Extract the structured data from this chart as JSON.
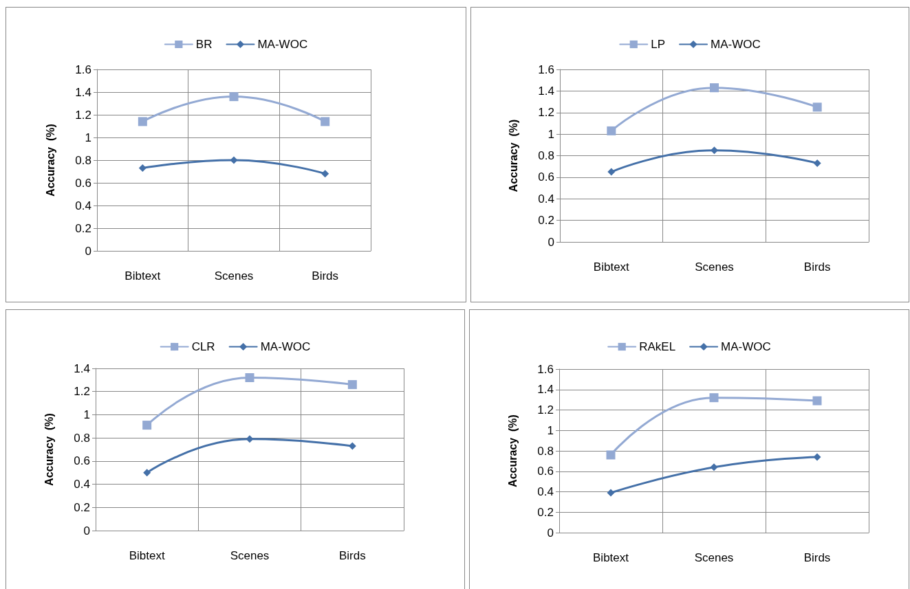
{
  "chart_data": [
    {
      "type": "line",
      "ylabel": "Accuracy  (%)",
      "categories": [
        "Bibtext",
        "Scenes",
        "Birds"
      ],
      "ylim": [
        0,
        1.6
      ],
      "yticks": [
        0,
        0.2,
        0.4,
        0.6,
        0.8,
        1,
        1.2,
        1.4,
        1.6
      ],
      "grid": true,
      "legend": "top",
      "series": [
        {
          "name": "BR",
          "color": "#93a9d3",
          "marker": "square",
          "values": [
            1.14,
            1.36,
            1.14
          ]
        },
        {
          "name": "MA-WOC",
          "color": "#4470a8",
          "marker": "diamond",
          "values": [
            0.73,
            0.8,
            0.68
          ]
        }
      ]
    },
    {
      "type": "line",
      "ylabel": "Accuracy  (%)",
      "categories": [
        "Bibtext",
        "Scenes",
        "Birds"
      ],
      "ylim": [
        0,
        1.6
      ],
      "yticks": [
        0,
        0.2,
        0.4,
        0.6,
        0.8,
        1,
        1.2,
        1.4,
        1.6
      ],
      "grid": true,
      "legend": "top",
      "series": [
        {
          "name": "LP",
          "color": "#93a9d3",
          "marker": "square",
          "values": [
            1.03,
            1.43,
            1.25
          ]
        },
        {
          "name": "MA-WOC",
          "color": "#4470a8",
          "marker": "diamond",
          "values": [
            0.65,
            0.85,
            0.73
          ]
        }
      ]
    },
    {
      "type": "line",
      "ylabel": "Accuracy  (%)",
      "categories": [
        "Bibtext",
        "Scenes",
        "Birds"
      ],
      "ylim": [
        0,
        1.4
      ],
      "yticks": [
        0,
        0.2,
        0.4,
        0.6,
        0.8,
        1,
        1.2,
        1.4
      ],
      "grid": true,
      "legend": "top",
      "series": [
        {
          "name": "CLR",
          "color": "#93a9d3",
          "marker": "square",
          "values": [
            0.91,
            1.32,
            1.26
          ]
        },
        {
          "name": "MA-WOC",
          "color": "#4470a8",
          "marker": "diamond",
          "values": [
            0.5,
            0.79,
            0.73
          ]
        }
      ]
    },
    {
      "type": "line",
      "ylabel": "Accuracy  (%)",
      "categories": [
        "Bibtext",
        "Scenes",
        "Birds"
      ],
      "ylim": [
        0,
        1.6
      ],
      "yticks": [
        0,
        0.2,
        0.4,
        0.6,
        0.8,
        1,
        1.2,
        1.4,
        1.6
      ],
      "grid": true,
      "legend": "top",
      "series": [
        {
          "name": "RAkEL",
          "color": "#93a9d3",
          "marker": "square",
          "values": [
            0.76,
            1.32,
            1.29
          ]
        },
        {
          "name": "MA-WOC",
          "color": "#4470a8",
          "marker": "diamond",
          "values": [
            0.39,
            0.64,
            0.74
          ]
        }
      ]
    }
  ]
}
